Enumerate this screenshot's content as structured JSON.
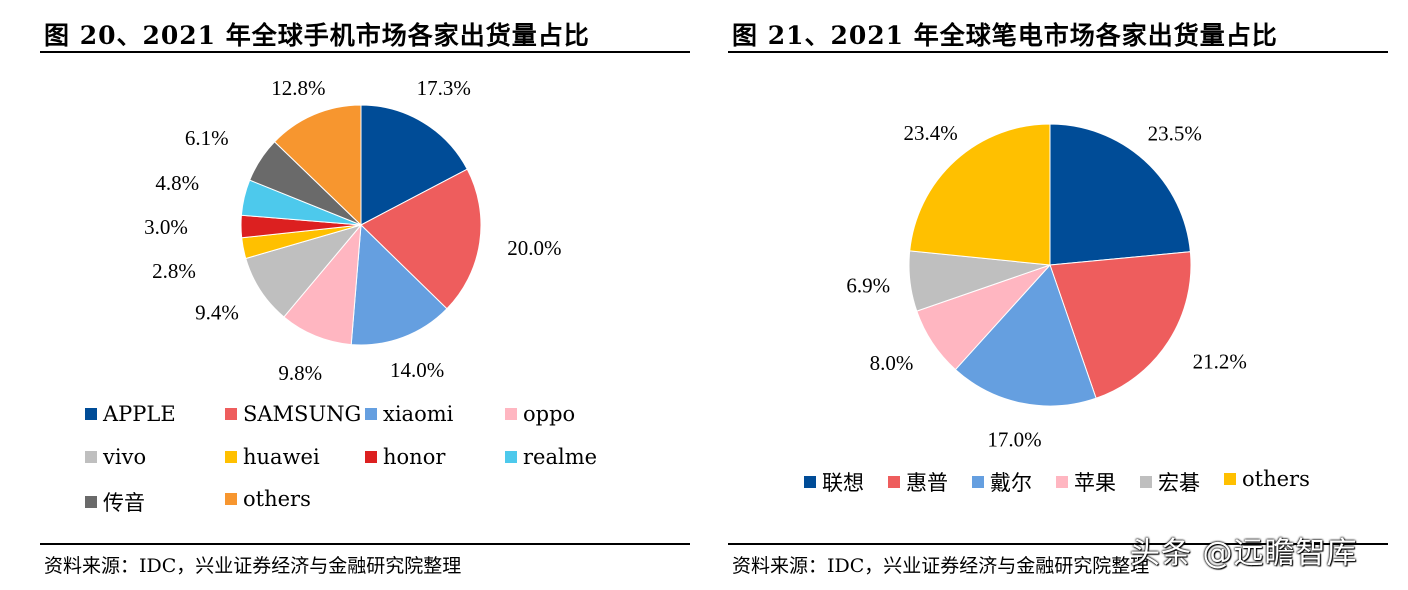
{
  "chart_data": [
    {
      "type": "pie",
      "title": "图 20、2021 年全球手机市场各家出货量占比",
      "categories": [
        "APPLE",
        "SAMSUNG",
        "xiaomi",
        "oppo",
        "vivo",
        "huawei",
        "honor",
        "realme",
        "传音",
        "others"
      ],
      "values": [
        17.3,
        20.0,
        14.0,
        9.8,
        9.4,
        2.8,
        3.0,
        4.8,
        6.1,
        12.8
      ],
      "slice_order": [
        "APPLE",
        "SAMSUNG",
        "xiaomi",
        "oppo",
        "vivo",
        "huawei",
        "honor",
        "realme",
        "传音",
        "others"
      ],
      "data_labels": [
        "17.3%",
        "20.0%",
        "14.0%",
        "9.8%",
        "9.4%",
        "2.8%",
        "3.0%",
        "4.8%",
        "6.1%",
        "12.8%"
      ],
      "colors": [
        "#004C97",
        "#EE5D5D",
        "#659FE0",
        "#FFB6C1",
        "#BFBFBF",
        "#FFC000",
        "#DC2020",
        "#4DC9EC",
        "#6A6A6A",
        "#F7962F"
      ],
      "legend_placement": "bottom",
      "source": "资料来源：IDC，兴业证券经济与金融研究院整理"
    },
    {
      "type": "pie",
      "title": "图 21、2021 年全球笔电市场各家出货量占比",
      "categories": [
        "联想",
        "惠普",
        "戴尔",
        "苹果",
        "宏碁",
        "others"
      ],
      "values": [
        23.5,
        21.2,
        17.0,
        8.0,
        6.9,
        23.4
      ],
      "data_labels": [
        "23.5%",
        "21.2%",
        "17.0%",
        "8.0%",
        "6.9%",
        "23.4%"
      ],
      "colors": [
        "#004C97",
        "#EE5D5D",
        "#659FE0",
        "#FFB6C1",
        "#BFBFBF",
        "#FFC000"
      ],
      "legend_placement": "bottom",
      "source": "资料来源：IDC，兴业证券经济与金融研究院整理"
    }
  ],
  "watermark": "头条 @远瞻智库"
}
